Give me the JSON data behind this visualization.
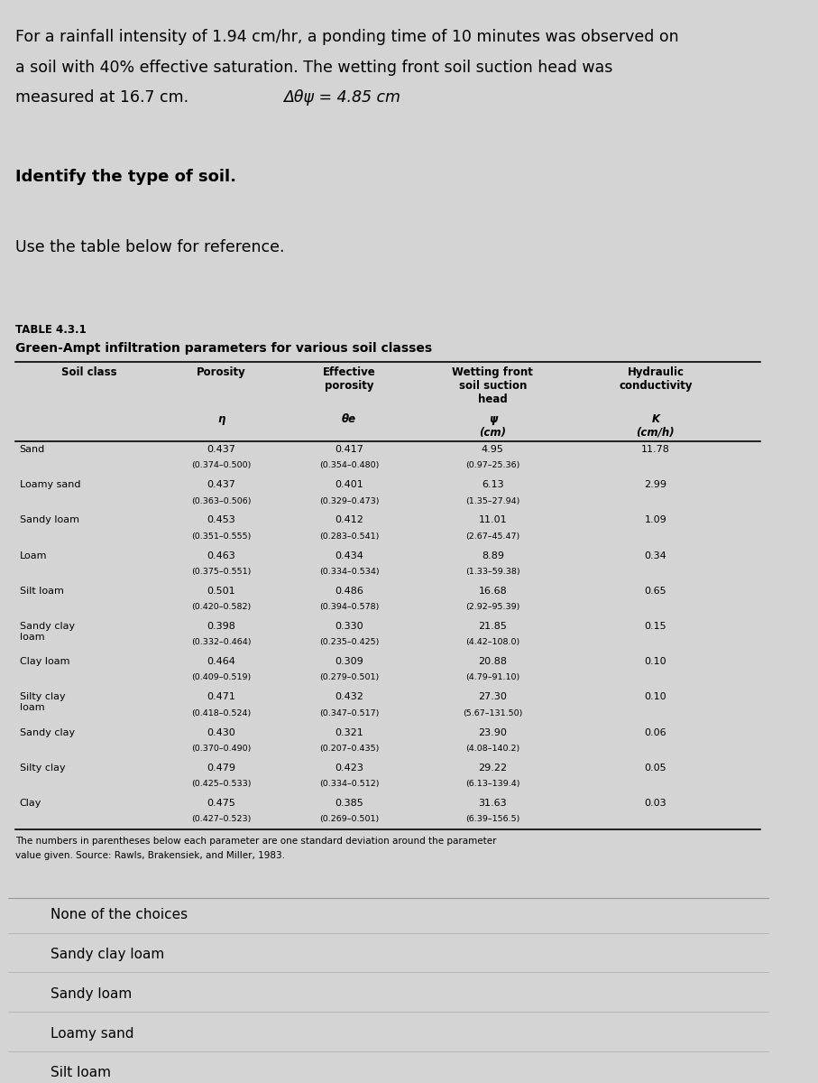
{
  "intro_text_line1": "For a rainfall intensity of 1.94 cm/hr, a ponding time of 10 minutes was observed on",
  "intro_text_line2": "a soil with 40% effective saturation. The wetting front soil suction head was",
  "intro_text_line3_normal": "measured at 16.7 cm. ",
  "intro_text_line3_math": "Δθψ = 4.85 cm",
  "identify_text": "Identify the type of soil.",
  "use_table_text": "Use the table below for reference.",
  "table_title_line1": "TABLE 4.3.1",
  "table_title_line2": "Green-Ampt infiltration parameters for various soil classes",
  "soil_data": [
    {
      "name": "Sand",
      "porosity": "0.437",
      "porosity_range": "(0.374–0.500)",
      "eff_porosity": "0.417",
      "eff_porosity_range": "(0.354–0.480)",
      "suction": "4.95",
      "suction_range": "(0.97–25.36)",
      "conductivity": "11.78"
    },
    {
      "name": "Loamy sand",
      "porosity": "0.437",
      "porosity_range": "(0.363–0.506)",
      "eff_porosity": "0.401",
      "eff_porosity_range": "(0.329–0.473)",
      "suction": "6.13",
      "suction_range": "(1.35–27.94)",
      "conductivity": "2.99"
    },
    {
      "name": "Sandy loam",
      "porosity": "0.453",
      "porosity_range": "(0.351–0.555)",
      "eff_porosity": "0.412",
      "eff_porosity_range": "(0.283–0.541)",
      "suction": "11.01",
      "suction_range": "(2.67–45.47)",
      "conductivity": "1.09"
    },
    {
      "name": "Loam",
      "porosity": "0.463",
      "porosity_range": "(0.375–0.551)",
      "eff_porosity": "0.434",
      "eff_porosity_range": "(0.334–0.534)",
      "suction": "8.89",
      "suction_range": "(1.33–59.38)",
      "conductivity": "0.34"
    },
    {
      "name": "Silt loam",
      "porosity": "0.501",
      "porosity_range": "(0.420–0.582)",
      "eff_porosity": "0.486",
      "eff_porosity_range": "(0.394–0.578)",
      "suction": "16.68",
      "suction_range": "(2.92–95.39)",
      "conductivity": "0.65"
    },
    {
      "name": "Sandy clay\nloam",
      "porosity": "0.398",
      "porosity_range": "(0.332–0.464)",
      "eff_porosity": "0.330",
      "eff_porosity_range": "(0.235–0.425)",
      "suction": "21.85",
      "suction_range": "(4.42–108.0)",
      "conductivity": "0.15"
    },
    {
      "name": "Clay loam",
      "porosity": "0.464",
      "porosity_range": "(0.409–0.519)",
      "eff_porosity": "0.309",
      "eff_porosity_range": "(0.279–0.501)",
      "suction": "20.88",
      "suction_range": "(4.79–91.10)",
      "conductivity": "0.10"
    },
    {
      "name": "Silty clay\nloam",
      "porosity": "0.471",
      "porosity_range": "(0.418–0.524)",
      "eff_porosity": "0.432",
      "eff_porosity_range": "(0.347–0.517)",
      "suction": "27.30",
      "suction_range": "(5.67–131.50)",
      "conductivity": "0.10"
    },
    {
      "name": "Sandy clay",
      "porosity": "0.430",
      "porosity_range": "(0.370–0.490)",
      "eff_porosity": "0.321",
      "eff_porosity_range": "(0.207–0.435)",
      "suction": "23.90",
      "suction_range": "(4.08–140.2)",
      "conductivity": "0.06"
    },
    {
      "name": "Silty clay",
      "porosity": "0.479",
      "porosity_range": "(0.425–0.533)",
      "eff_porosity": "0.423",
      "eff_porosity_range": "(0.334–0.512)",
      "suction": "29.22",
      "suction_range": "(6.13–139.4)",
      "conductivity": "0.05"
    },
    {
      "name": "Clay",
      "porosity": "0.475",
      "porosity_range": "(0.427–0.523)",
      "eff_porosity": "0.385",
      "eff_porosity_range": "(0.269–0.501)",
      "suction": "31.63",
      "suction_range": "(6.39–156.5)",
      "conductivity": "0.03"
    }
  ],
  "footnote_line1": "The numbers in parentheses below each parameter are one standard deviation around the parameter",
  "footnote_line2": "value given. Source: Rawls, Brakensiek, and Miller, 1983.",
  "choices": [
    "None of the choices",
    "Sandy clay loam",
    "Sandy loam",
    "Loamy sand",
    "Silt loam"
  ],
  "bg_color": "#d4d4d4",
  "text_color": "#000000"
}
